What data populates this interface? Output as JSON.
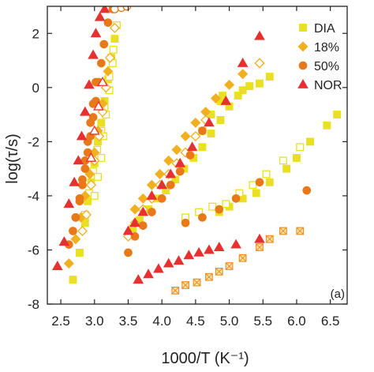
{
  "chart_data": {
    "type": "scatter",
    "panel_label": "(a)",
    "xlabel": "1000/T (K⁻¹)",
    "ylabel": "log(τ/s)",
    "xlim": [
      2.3,
      6.75
    ],
    "ylim": [
      -8,
      3
    ],
    "x_ticks": [
      "2.5",
      "3.0",
      "3.5",
      "4.0",
      "4.5",
      "5.0",
      "5.5",
      "6.0",
      "6.5"
    ],
    "y_ticks": [
      "-8",
      "-6",
      "-4",
      "-2",
      "0",
      "2"
    ],
    "legend": {
      "position": "top-right",
      "entries": [
        "DIA",
        "18%",
        "50%",
        "NOR"
      ]
    },
    "colors": {
      "DIA": "#e8e020",
      "18%": "#f0b020",
      "50%": "#e87818",
      "NOR": "#e83030",
      "cross": "#e89030"
    },
    "series": [
      {
        "name": "DIA",
        "marker": "square",
        "groups": [
          {
            "style": "filled",
            "x": [
              2.68,
              2.78,
              2.86,
              2.9,
              2.95,
              3.0,
              3.05,
              3.1,
              3.15,
              3.2,
              3.25,
              3.3
            ],
            "y": [
              -7.1,
              -6.1,
              -5.0,
              -4.2,
              -3.5,
              -2.8,
              -2.0,
              -1.3,
              -0.5,
              0.3,
              1.1,
              1.8
            ]
          },
          {
            "style": "open",
            "x": [
              2.86,
              2.92,
              2.98,
              3.04,
              3.1,
              3.15,
              3.22,
              3.28
            ],
            "y": [
              -4.7,
              -3.9,
              -3.1,
              -2.3,
              -1.6,
              -0.7,
              0.4,
              1.4
            ]
          },
          {
            "style": "open",
            "x": [
              3.0,
              3.05,
              3.1,
              3.13,
              3.17,
              3.22,
              3.27,
              3.33
            ],
            "y": [
              -4.0,
              -3.3,
              -2.6,
              -1.8,
              -1.0,
              -0.1,
              0.9,
              2.3
            ]
          },
          {
            "style": "filled",
            "x": [
              3.57,
              3.67,
              3.8,
              3.93,
              4.06,
              4.2,
              4.33,
              4.47,
              4.6,
              4.73,
              4.87,
              5.0,
              5.13
            ],
            "y": [
              -5.2,
              -4.9,
              -4.5,
              -4.1,
              -3.8,
              -3.4,
              -3.0,
              -2.6,
              -2.2,
              -1.7,
              -1.2,
              -0.7,
              -0.3
            ]
          },
          {
            "style": "filled",
            "x": [
              4.6,
              4.73,
              4.87,
              4.9,
              5.2,
              5.3,
              5.45,
              5.6
            ],
            "y": [
              -1.6,
              -1.0,
              -0.5,
              -0.3,
              -0.1,
              0.05,
              0.15,
              0.4
            ]
          },
          {
            "style": "filled",
            "x": [
              4.85,
              5.0,
              5.2,
              5.4,
              5.6,
              5.85,
              6.0,
              6.2,
              6.45,
              6.6
            ],
            "y": [
              -4.6,
              -4.4,
              -4.1,
              -3.9,
              -3.5,
              -3.0,
              -2.6,
              -2.0,
              -1.4,
              -1.0
            ]
          },
          {
            "style": "open",
            "x": [
              4.35,
              4.55,
              4.75,
              4.95,
              5.15,
              5.35,
              5.55,
              5.8,
              6.05
            ],
            "y": [
              -4.8,
              -4.6,
              -4.4,
              -4.3,
              -3.9,
              -3.6,
              -3.2,
              -2.7,
              -2.2
            ]
          }
        ]
      },
      {
        "name": "18%",
        "marker": "diamond",
        "groups": [
          {
            "style": "filled",
            "x": [
              2.62,
              2.72,
              2.8,
              2.86,
              2.93,
              3.0,
              3.05,
              3.12,
              3.2
            ],
            "y": [
              -6.5,
              -5.6,
              -4.8,
              -4.0,
              -3.2,
              -2.4,
              -1.6,
              -0.6,
              0.6
            ]
          },
          {
            "style": "open",
            "x": [
              2.82,
              2.88,
              2.95,
              3.0,
              3.07,
              3.12,
              3.17,
              3.23,
              3.3
            ],
            "y": [
              -5.3,
              -4.7,
              -3.6,
              -2.7,
              -1.8,
              -0.9,
              0.0,
              1.1,
              2.2
            ]
          },
          {
            "style": "open",
            "x": [
              3.5,
              3.6,
              3.72,
              3.85,
              3.97,
              4.1,
              4.22,
              4.35,
              4.5,
              4.65
            ],
            "y": [
              -5.5,
              -5.0,
              -4.5,
              -4.1,
              -3.6,
              -3.2,
              -2.8,
              -2.4,
              -1.8,
              -1.2
            ]
          },
          {
            "style": "filled",
            "x": [
              3.6,
              3.72,
              3.85,
              3.97,
              4.1,
              4.22,
              4.35,
              4.5,
              4.65,
              4.8,
              5.0,
              5.2,
              5.45
            ],
            "y": [
              -4.5,
              -4.1,
              -3.6,
              -3.2,
              -2.7,
              -2.3,
              -1.8,
              -1.3,
              -0.9,
              -0.4,
              0.1,
              0.5,
              0.9
            ]
          },
          {
            "style": "open",
            "x": [
              5.45
            ],
            "y": [
              0.9
            ]
          }
        ]
      },
      {
        "name": "50%",
        "marker": "circle",
        "groups": [
          {
            "style": "filled",
            "x": [
              2.62,
              2.68,
              2.72,
              2.78,
              2.82,
              2.86,
              2.9,
              2.94,
              2.98,
              3.02,
              3.06,
              3.1,
              3.14,
              3.2,
              3.27
            ],
            "y": [
              -5.8,
              -5.3,
              -4.8,
              -4.2,
              -3.6,
              -3.0,
              -2.4,
              -1.8,
              -1.1,
              -0.5,
              0.2,
              0.9,
              1.6,
              2.4,
              2.9
            ]
          },
          {
            "style": "filled",
            "x": [
              2.72,
              2.78,
              2.82,
              2.86,
              2.9,
              2.94,
              2.98,
              3.02
            ],
            "y": [
              -4.8,
              -4.1,
              -3.4,
              -2.7,
              -2.0,
              -1.3,
              -0.6,
              0.2
            ]
          },
          {
            "style": "open",
            "x": [
              3.3,
              3.4,
              3.48
            ],
            "y": [
              2.9,
              2.95,
              3.0
            ]
          },
          {
            "style": "filled",
            "x": [
              3.5,
              3.6,
              3.72,
              3.85,
              4.0,
              4.13,
              4.27,
              4.42,
              4.6
            ],
            "y": [
              -6.1,
              -5.5,
              -5.1,
              -4.6,
              -4.1,
              -3.6,
              -3.1,
              -2.5,
              -1.6
            ]
          },
          {
            "style": "filled",
            "x": [
              4.35,
              4.6,
              4.85,
              5.1,
              5.45,
              6.15
            ],
            "y": [
              -5.0,
              -4.8,
              -4.5,
              -4.1,
              -3.5,
              -3.8
            ]
          }
        ]
      },
      {
        "name": "NOR",
        "marker": "triangle",
        "groups": [
          {
            "style": "filled",
            "x": [
              2.45,
              2.55,
              2.62,
              2.7,
              2.76,
              2.81,
              2.86,
              2.92,
              2.98,
              3.02,
              3.08,
              3.15
            ],
            "y": [
              -6.6,
              -5.7,
              -4.3,
              -3.5,
              -2.7,
              -1.8,
              -0.9,
              0.1,
              1.2,
              2.0,
              2.6,
              2.9
            ]
          },
          {
            "style": "open",
            "x": [
              2.95,
              3.0,
              3.06,
              3.12
            ],
            "y": [
              -2.6,
              -1.6,
              -0.7,
              0.2
            ]
          },
          {
            "style": "filled",
            "x": [
              3.5,
              3.6,
              3.72,
              3.85,
              4.0,
              4.13,
              4.27,
              4.45,
              4.7,
              4.95,
              5.2,
              5.45
            ],
            "y": [
              -5.3,
              -5.0,
              -4.6,
              -4.0,
              -3.6,
              -3.2,
              -2.8,
              -2.2,
              -1.3,
              -0.5,
              0.9,
              1.9
            ]
          },
          {
            "style": "filled",
            "x": [
              3.65,
              3.8,
              3.95,
              4.1,
              4.25,
              4.4,
              4.55,
              4.7,
              4.85,
              5.1,
              5.45
            ],
            "y": [
              -7.1,
              -6.9,
              -6.7,
              -6.5,
              -6.4,
              -6.2,
              -6.1,
              -6.0,
              -5.9,
              -5.8,
              -5.6
            ]
          }
        ]
      },
      {
        "marker": "cross-square",
        "groups": [
          {
            "style": "cross",
            "x": [
              4.2,
              4.35,
              4.52,
              4.7,
              4.85,
              5.0,
              5.2,
              5.45,
              5.6,
              5.8,
              6.05
            ],
            "y": [
              -7.5,
              -7.3,
              -7.2,
              -7.0,
              -6.8,
              -6.6,
              -6.3,
              -5.9,
              -5.6,
              -5.3,
              -5.3
            ]
          }
        ]
      }
    ]
  }
}
